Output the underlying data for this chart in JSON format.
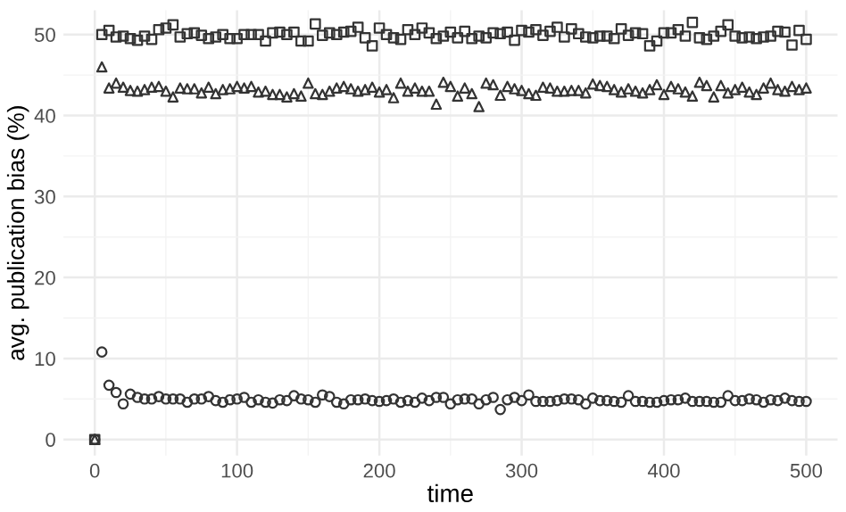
{
  "chart_data": {
    "type": "scatter",
    "xlabel": "time",
    "ylabel": "avg. publication bias (%)",
    "x": [
      0,
      5,
      10,
      15,
      20,
      25,
      30,
      35,
      40,
      45,
      50,
      55,
      60,
      65,
      70,
      75,
      80,
      85,
      90,
      95,
      100,
      105,
      110,
      115,
      120,
      125,
      130,
      135,
      140,
      145,
      150,
      155,
      160,
      165,
      170,
      175,
      180,
      185,
      190,
      195,
      200,
      205,
      210,
      215,
      220,
      225,
      230,
      235,
      240,
      245,
      250,
      255,
      260,
      265,
      270,
      275,
      280,
      285,
      290,
      295,
      300,
      305,
      310,
      315,
      320,
      325,
      330,
      335,
      340,
      345,
      350,
      355,
      360,
      365,
      370,
      375,
      380,
      385,
      390,
      395,
      400,
      405,
      410,
      415,
      420,
      425,
      430,
      435,
      440,
      445,
      450,
      455,
      460,
      465,
      470,
      475,
      480,
      485,
      490,
      495,
      500
    ],
    "series": [
      {
        "color": "#333333",
        "marker": "square",
        "values": [
          0,
          50.0,
          50.5,
          49.7,
          49.8,
          49.5,
          49.3,
          49.8,
          49.4,
          50.6,
          50.8,
          51.2,
          49.7,
          50.1,
          50.2,
          49.9,
          49.5,
          49.7,
          50.0,
          49.5,
          49.5,
          50.0,
          50.0,
          50.0,
          49.2,
          50.2,
          50.3,
          50.0,
          50.3,
          49.2,
          49.2,
          51.3,
          49.9,
          50.2,
          50.0,
          50.3,
          50.4,
          50.9,
          49.6,
          48.6,
          50.8,
          50.0,
          49.6,
          49.4,
          50.6,
          50.0,
          50.8,
          50.2,
          49.5,
          49.8,
          50.3,
          49.6,
          50.4,
          49.5,
          49.8,
          49.6,
          50.2,
          50.1,
          50.3,
          49.3,
          50.5,
          50.3,
          50.6,
          49.9,
          50.4,
          50.9,
          49.7,
          50.7,
          50.1,
          49.7,
          49.6,
          49.8,
          49.8,
          49.5,
          50.7,
          49.9,
          50.2,
          50.1,
          48.6,
          49.2,
          50.2,
          50.2,
          50.6,
          49.8,
          51.5,
          49.6,
          49.4,
          49.8,
          50.4,
          51.2,
          49.8,
          49.6,
          49.7,
          49.5,
          49.7,
          49.8,
          50.4,
          50.3,
          48.7,
          50.5,
          49.4
        ]
      },
      {
        "color": "#333333",
        "marker": "triangle",
        "values": [
          0,
          46.0,
          43.4,
          44.0,
          43.5,
          43.1,
          43.0,
          43.2,
          43.5,
          43.6,
          43.0,
          42.3,
          43.4,
          43.3,
          43.3,
          42.8,
          43.5,
          42.7,
          43.2,
          43.3,
          43.6,
          43.4,
          43.6,
          42.9,
          43.0,
          42.6,
          42.6,
          42.3,
          42.7,
          42.4,
          44.0,
          42.7,
          42.6,
          43.0,
          43.4,
          43.6,
          43.3,
          43.0,
          43.2,
          43.5,
          42.9,
          43.2,
          42.2,
          44.0,
          43.0,
          43.4,
          43.0,
          43.0,
          41.4,
          44.1,
          43.6,
          42.4,
          43.4,
          42.7,
          41.1,
          44.0,
          43.8,
          42.5,
          43.6,
          43.3,
          43.1,
          42.7,
          42.5,
          43.5,
          43.4,
          43.0,
          43.0,
          43.1,
          43.1,
          42.8,
          43.9,
          43.7,
          43.6,
          43.2,
          42.9,
          43.3,
          43.0,
          42.8,
          43.2,
          43.8,
          42.6,
          43.6,
          43.3,
          42.9,
          42.4,
          44.1,
          43.7,
          42.3,
          43.7,
          42.8,
          43.2,
          43.5,
          42.9,
          42.6,
          43.4,
          44.0,
          43.2,
          43.0,
          43.6,
          43.2,
          43.4
        ]
      },
      {
        "color": "#333333",
        "marker": "circle",
        "values": [
          0,
          10.8,
          6.7,
          5.8,
          4.4,
          5.6,
          5.2,
          5.0,
          5.0,
          5.3,
          5.0,
          5.0,
          5.0,
          4.6,
          5.0,
          5.0,
          5.3,
          4.8,
          4.6,
          4.9,
          5.0,
          5.2,
          4.6,
          4.9,
          4.6,
          4.5,
          4.9,
          4.8,
          5.4,
          5.0,
          4.9,
          4.6,
          5.5,
          5.3,
          4.6,
          4.4,
          4.9,
          4.9,
          5.0,
          4.8,
          4.7,
          4.8,
          5.0,
          4.6,
          4.8,
          4.6,
          5.1,
          4.8,
          5.2,
          5.2,
          4.4,
          4.9,
          5.0,
          5.0,
          4.4,
          4.9,
          5.2,
          3.7,
          4.9,
          5.2,
          4.8,
          5.5,
          4.7,
          4.7,
          4.7,
          4.8,
          5.0,
          5.0,
          4.9,
          4.4,
          5.1,
          4.8,
          4.8,
          4.7,
          4.6,
          5.4,
          4.7,
          4.7,
          4.6,
          4.6,
          4.8,
          4.9,
          4.9,
          5.1,
          4.7,
          4.7,
          4.7,
          4.6,
          4.6,
          5.4,
          4.8,
          4.8,
          5.0,
          4.9,
          4.6,
          4.9,
          4.8,
          5.1,
          4.8,
          4.7,
          4.7
        ]
      }
    ],
    "xlim": [
      -22,
      522
    ],
    "ylim": [
      -2,
      53
    ],
    "xticks": [
      0,
      100,
      200,
      300,
      400,
      500
    ],
    "yticks": [
      0,
      10,
      20,
      30,
      40,
      50
    ],
    "grid": true,
    "legend": false
  }
}
